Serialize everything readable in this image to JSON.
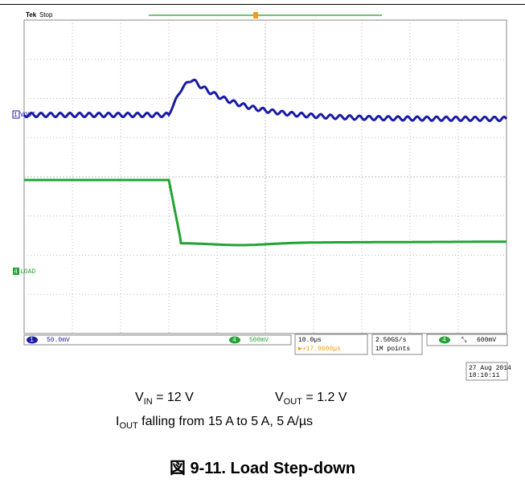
{
  "screen": {
    "brand": "Tek",
    "status": "Stop",
    "ch1_num": "1",
    "ch1_label": "VOUT",
    "ch4_num": "4",
    "ch4_label": "LOAD"
  },
  "status_bar": {
    "ch1_num": "1",
    "ch1_scale": "50.0mV",
    "ch4_num": "4",
    "ch4_scale": "500mV",
    "timebase": "10.0µs",
    "trigger_pos": "▶+17.9600µs",
    "sample_rate": "2.50GS/s",
    "record_length": "1M points",
    "trigger_ch": "4",
    "trigger_level": "600mV"
  },
  "timestamp": {
    "date": "27 Aug 2014",
    "time": "18:10:11"
  },
  "caption": {
    "vin_base": "V",
    "vin_sub": "IN",
    "vin_rest": " = 12 V",
    "vout_base": "V",
    "vout_sub": "OUT",
    "vout_rest": " = 1.2 V",
    "iout_base": "I",
    "iout_sub": "OUT",
    "iout_rest": " falling from 15 A to 5 A, 5 A/µs",
    "figure_title": "図 9-11. Load Step-down"
  }
}
